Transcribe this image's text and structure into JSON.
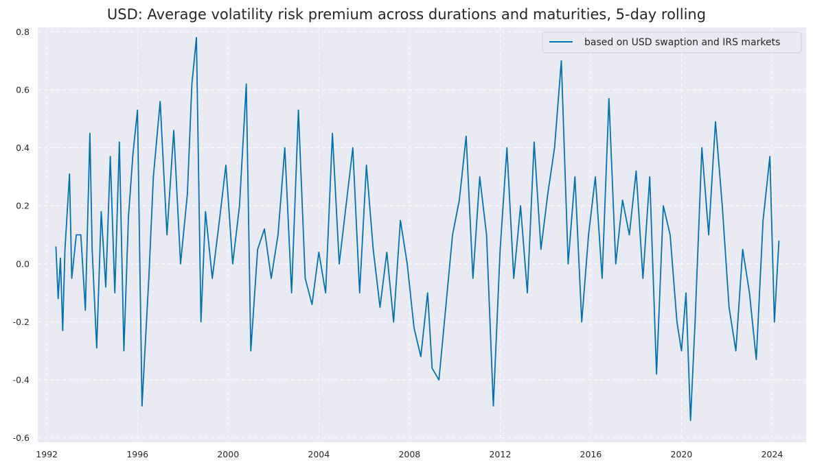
{
  "chart_data": {
    "type": "line",
    "title": "USD: Average volatility risk premium across durations and maturities, 5-day rolling",
    "xlabel": "",
    "ylabel": "",
    "xlim": [
      1991.6,
      2025.5
    ],
    "ylim": [
      -0.615,
      0.815
    ],
    "x_ticks": [
      1992,
      1996,
      2000,
      2004,
      2008,
      2012,
      2016,
      2020,
      2024
    ],
    "x_tick_labels": [
      "1992",
      "1996",
      "2000",
      "2004",
      "2008",
      "2012",
      "2016",
      "2020",
      "2024"
    ],
    "y_ticks": [
      -0.6,
      -0.4,
      -0.2,
      0.0,
      0.2,
      0.4,
      0.6,
      0.8
    ],
    "y_tick_labels": [
      "-0.6",
      "-0.4",
      "-0.2",
      "0.0",
      "0.2",
      "0.4",
      "0.6",
      "0.8"
    ],
    "grid": true,
    "legend_position": "top-right",
    "colors": {
      "series": "#0072b2",
      "plot_bg": "#eaeaf2",
      "grid": "#ffffff"
    },
    "series": [
      {
        "name": "based on USD swaption and IRS markets",
        "x": [
          1992.4,
          1992.5,
          1992.6,
          1992.7,
          1992.8,
          1993.0,
          1993.1,
          1993.3,
          1993.5,
          1993.7,
          1993.9,
          1994.0,
          1994.2,
          1994.4,
          1994.6,
          1994.8,
          1995.0,
          1995.2,
          1995.4,
          1995.6,
          1995.8,
          1996.0,
          1996.2,
          1996.3,
          1996.5,
          1996.7,
          1997.0,
          1997.3,
          1997.6,
          1997.9,
          1998.2,
          1998.4,
          1998.6,
          1998.8,
          1999.0,
          1999.3,
          1999.6,
          1999.9,
          2000.2,
          2000.5,
          2000.8,
          2001.0,
          2001.3,
          2001.6,
          2001.9,
          2002.2,
          2002.5,
          2002.8,
          2003.1,
          2003.4,
          2003.7,
          2004.0,
          2004.3,
          2004.6,
          2004.9,
          2005.2,
          2005.5,
          2005.8,
          2006.1,
          2006.4,
          2006.7,
          2007.0,
          2007.3,
          2007.6,
          2007.9,
          2008.2,
          2008.5,
          2008.8,
          2009.0,
          2009.3,
          2009.6,
          2009.9,
          2010.2,
          2010.5,
          2010.8,
          2011.1,
          2011.4,
          2011.7,
          2012.0,
          2012.3,
          2012.6,
          2012.9,
          2013.2,
          2013.5,
          2013.8,
          2014.1,
          2014.4,
          2014.7,
          2015.0,
          2015.3,
          2015.6,
          2015.9,
          2016.2,
          2016.5,
          2016.8,
          2017.1,
          2017.4,
          2017.7,
          2018.0,
          2018.3,
          2018.6,
          2018.9,
          2019.2,
          2019.5,
          2019.8,
          2020.0,
          2020.2,
          2020.4,
          2020.6,
          2020.9,
          2021.2,
          2021.5,
          2021.8,
          2022.1,
          2022.4,
          2022.7,
          2023.0,
          2023.3,
          2023.6,
          2023.9,
          2024.1,
          2024.3
        ],
        "values": [
          0.06,
          -0.12,
          0.02,
          -0.23,
          0.05,
          0.31,
          -0.05,
          0.1,
          0.1,
          -0.16,
          0.45,
          0.05,
          -0.29,
          0.18,
          -0.08,
          0.37,
          -0.1,
          0.42,
          -0.3,
          0.16,
          0.38,
          0.53,
          -0.49,
          -0.34,
          -0.05,
          0.3,
          0.56,
          0.1,
          0.46,
          0.0,
          0.24,
          0.62,
          0.78,
          -0.2,
          0.18,
          -0.05,
          0.14,
          0.34,
          0.0,
          0.2,
          0.62,
          -0.3,
          0.05,
          0.12,
          -0.05,
          0.1,
          0.4,
          -0.1,
          0.53,
          -0.05,
          -0.14,
          0.04,
          -0.1,
          0.45,
          0.0,
          0.2,
          0.4,
          -0.1,
          0.34,
          0.05,
          -0.15,
          0.04,
          -0.2,
          0.15,
          0.0,
          -0.22,
          -0.32,
          -0.1,
          -0.36,
          -0.4,
          -0.15,
          0.1,
          0.22,
          0.44,
          -0.05,
          0.3,
          0.1,
          -0.49,
          0.05,
          0.4,
          -0.05,
          0.2,
          -0.1,
          0.42,
          0.05,
          0.24,
          0.4,
          0.7,
          0.0,
          0.3,
          -0.2,
          0.1,
          0.3,
          -0.05,
          0.57,
          0.0,
          0.22,
          0.1,
          0.32,
          -0.05,
          0.3,
          -0.38,
          0.2,
          0.1,
          -0.2,
          -0.3,
          -0.1,
          -0.54,
          -0.2,
          0.4,
          0.1,
          0.49,
          0.2,
          -0.15,
          -0.3,
          0.05,
          -0.1,
          -0.33,
          0.15,
          0.37,
          -0.2,
          0.08
        ]
      }
    ]
  }
}
